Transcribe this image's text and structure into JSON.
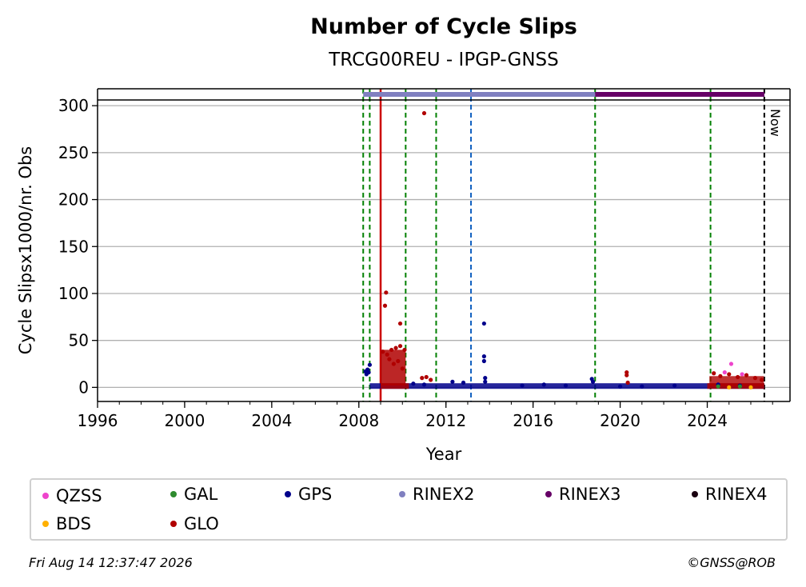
{
  "chart_data": {
    "type": "scatter",
    "title": "Number of Cycle Slips",
    "subtitle": "TRCG00REU - IPGP-GNSS",
    "xlabel": "Year",
    "ylabel": "Cycle Slipsx1000/nr. Obs",
    "xlim": [
      1996,
      2027.8
    ],
    "ylim": [
      -15,
      318
    ],
    "x_ticks": [
      "1996",
      "2000",
      "2004",
      "2008",
      "2012",
      "2016",
      "2020",
      "2024"
    ],
    "y_ticks": [
      "0",
      "50",
      "100",
      "150",
      "200",
      "250",
      "300"
    ],
    "grid": "horizontal",
    "now_label": "Now",
    "now_year": 2026.62,
    "event_lines": [
      {
        "year": 2008.2,
        "color": "#008000",
        "style": "dashed"
      },
      {
        "year": 2008.5,
        "color": "#008000",
        "style": "dashed"
      },
      {
        "year": 2009.0,
        "color": "#cc0000",
        "style": "solid"
      },
      {
        "year": 2010.15,
        "color": "#008000",
        "style": "dashed"
      },
      {
        "year": 2011.55,
        "color": "#008000",
        "style": "dashed"
      },
      {
        "year": 2013.15,
        "color": "#1060c0",
        "style": "dashed"
      },
      {
        "year": 2018.85,
        "color": "#008000",
        "style": "dashed"
      },
      {
        "year": 2024.15,
        "color": "#008000",
        "style": "dashed"
      }
    ],
    "rinex_bars": [
      {
        "name": "RINEX2",
        "start": 2008.2,
        "end": 2018.85,
        "color": "#8080c0"
      },
      {
        "name": "RINEX3",
        "start": 2018.85,
        "end": 2026.62,
        "color": "#660066"
      }
    ],
    "series": [
      {
        "name": "GPS",
        "color": "#00008b",
        "points": [
          [
            2008.3,
            17
          ],
          [
            2008.35,
            14
          ],
          [
            2008.4,
            19
          ],
          [
            2008.45,
            16
          ],
          [
            2008.5,
            24
          ],
          [
            2010.5,
            4
          ],
          [
            2011.0,
            3
          ],
          [
            2012.3,
            6
          ],
          [
            2012.8,
            5
          ],
          [
            2013.75,
            68
          ],
          [
            2013.75,
            33
          ],
          [
            2013.75,
            28
          ],
          [
            2013.8,
            10
          ],
          [
            2013.8,
            6
          ],
          [
            2015.5,
            2
          ],
          [
            2016.5,
            3
          ],
          [
            2017.5,
            2
          ],
          [
            2018.7,
            9
          ],
          [
            2018.75,
            6
          ],
          [
            2020.0,
            1
          ],
          [
            2021.0,
            1
          ],
          [
            2022.5,
            2
          ],
          [
            2024.5,
            3
          ],
          [
            2025.5,
            2
          ]
        ]
      },
      {
        "name": "GLO",
        "color": "#b00000",
        "points": [
          [
            2009.25,
            101
          ],
          [
            2009.2,
            87
          ],
          [
            2009.9,
            68
          ],
          [
            2011.0,
            292
          ],
          [
            2009.1,
            38
          ],
          [
            2009.3,
            35
          ],
          [
            2009.5,
            40
          ],
          [
            2009.7,
            42
          ],
          [
            2009.9,
            44
          ],
          [
            2010.1,
            40
          ],
          [
            2009.4,
            30
          ],
          [
            2009.6,
            25
          ],
          [
            2009.8,
            28
          ],
          [
            2010.0,
            20
          ],
          [
            2010.9,
            10
          ],
          [
            2011.1,
            11
          ],
          [
            2011.3,
            8
          ],
          [
            2020.3,
            16
          ],
          [
            2020.3,
            13
          ],
          [
            2020.35,
            5
          ],
          [
            2024.3,
            15
          ],
          [
            2024.6,
            12
          ],
          [
            2025.0,
            14
          ],
          [
            2025.4,
            11
          ],
          [
            2025.8,
            13
          ],
          [
            2026.2,
            10
          ],
          [
            2026.5,
            8
          ]
        ]
      },
      {
        "name": "QZSS",
        "color": "#ee44cc",
        "points": [
          [
            2025.1,
            25
          ],
          [
            2024.8,
            16
          ],
          [
            2025.6,
            14
          ]
        ]
      },
      {
        "name": "GAL",
        "color": "#2e8b2e",
        "points": [
          [
            2024.5,
            1
          ],
          [
            2025.5,
            1
          ]
        ]
      },
      {
        "name": "BDS",
        "color": "#ffb000",
        "points": [
          [
            2025.0,
            0
          ],
          [
            2026.0,
            0
          ]
        ]
      }
    ],
    "legend": [
      {
        "label": "QZSS",
        "color": "#ee44cc"
      },
      {
        "label": "GAL",
        "color": "#2e8b2e"
      },
      {
        "label": "GPS",
        "color": "#00008b"
      },
      {
        "label": "RINEX2",
        "color": "#8080c0"
      },
      {
        "label": "RINEX3",
        "color": "#660066"
      },
      {
        "label": "RINEX4",
        "color": "#1a0010"
      },
      {
        "label": "BDS",
        "color": "#ffb000"
      },
      {
        "label": "GLO",
        "color": "#b00000"
      }
    ]
  },
  "footer": {
    "timestamp": "Fri Aug 14 12:37:47 2026",
    "credit": "©GNSS@ROB"
  }
}
